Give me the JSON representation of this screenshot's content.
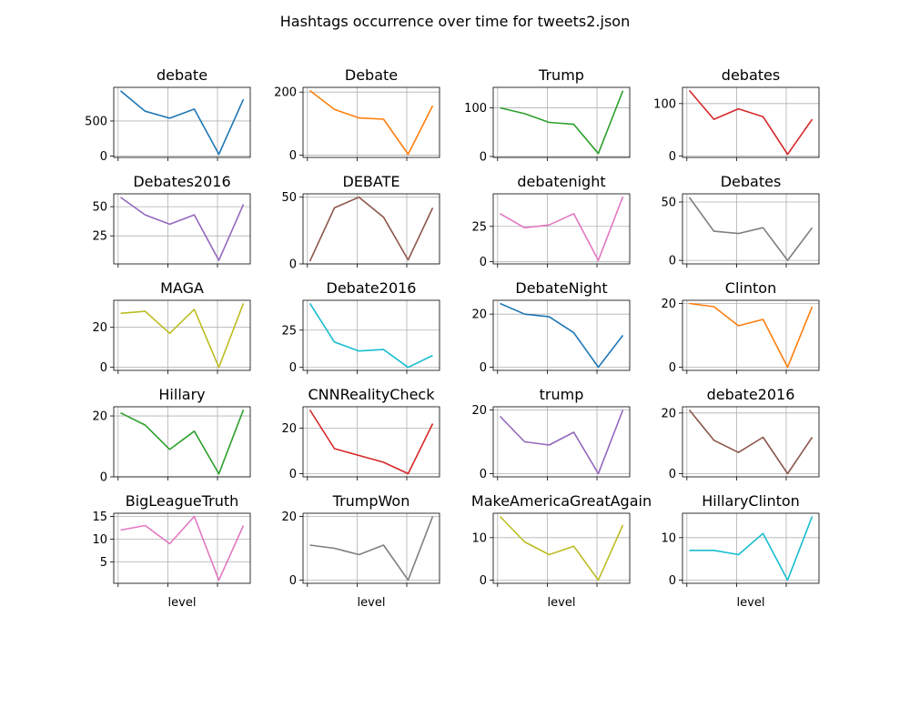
{
  "figure": {
    "title": "Hashtags occurrence over time for tweets2.json"
  },
  "chart_data": {
    "type": "line",
    "title": "Hashtags occurrence over time for tweets2.json",
    "grid": true,
    "xlabel": "level",
    "panels": [
      {
        "name": "debate",
        "color": "#1f77b4",
        "values": [
          930,
          640,
          540,
          670,
          25,
          810
        ],
        "yticks": [
          0,
          500
        ],
        "ylim": [
          -20,
          980
        ]
      },
      {
        "name": "Debate",
        "color": "#ff7f0e",
        "values": [
          205,
          145,
          118,
          114,
          3,
          157
        ],
        "yticks": [
          0,
          200
        ],
        "ylim": [
          -7,
          215
        ]
      },
      {
        "name": "Trump",
        "color": "#2ca02c",
        "values": [
          100,
          88,
          70,
          66,
          6,
          135
        ],
        "yticks": [
          0,
          100
        ],
        "ylim": [
          -2,
          142
        ]
      },
      {
        "name": "debates",
        "color": "#d62728",
        "values": [
          125,
          70,
          90,
          75,
          3,
          70
        ],
        "yticks": [
          0,
          100
        ],
        "ylim": [
          -3,
          131
        ]
      },
      {
        "name": "Debates2016",
        "color": "#9467bd",
        "values": [
          58,
          43,
          35,
          43,
          4,
          52
        ],
        "yticks": [
          25,
          50
        ],
        "ylim": [
          1,
          61
        ]
      },
      {
        "name": "DEBATE",
        "color": "#8c564b",
        "values": [
          2,
          42,
          50,
          35,
          3,
          42
        ],
        "yticks": [
          0,
          50
        ],
        "ylim": [
          0,
          52.5
        ]
      },
      {
        "name": "debatenight",
        "color": "#e377c2",
        "values": [
          34,
          24,
          26,
          34,
          1,
          46
        ],
        "yticks": [
          0,
          25
        ],
        "ylim": [
          -1.5,
          48
        ]
      },
      {
        "name": "Debates",
        "color": "#7f7f7f",
        "values": [
          54,
          25,
          23,
          28,
          0,
          28
        ],
        "yticks": [
          0,
          50
        ],
        "ylim": [
          -3,
          57
        ]
      },
      {
        "name": "MAGA",
        "color": "#bcbd22",
        "values": [
          27,
          28,
          17,
          29,
          0,
          32
        ],
        "yticks": [
          0,
          20
        ],
        "ylim": [
          -1.5,
          33.5
        ]
      },
      {
        "name": "Debate2016",
        "color": "#17becf",
        "values": [
          43,
          17,
          11,
          12,
          0,
          8
        ],
        "yticks": [
          0,
          25
        ],
        "ylim": [
          -2,
          45
        ]
      },
      {
        "name": "DebateNight",
        "color": "#1f77b4",
        "values": [
          24,
          20,
          19,
          13,
          0,
          12
        ],
        "yticks": [
          0,
          20
        ],
        "ylim": [
          -1.2,
          25.2
        ]
      },
      {
        "name": "Clinton",
        "color": "#ff7f0e",
        "values": [
          20,
          19,
          13,
          15,
          0,
          19
        ],
        "yticks": [
          0,
          20
        ],
        "ylim": [
          -1,
          21
        ]
      },
      {
        "name": "Hillary",
        "color": "#2ca02c",
        "values": [
          21,
          17,
          9,
          15,
          1,
          22
        ],
        "yticks": [
          0,
          20
        ],
        "ylim": [
          0,
          23
        ]
      },
      {
        "name": "CNNRealityCheck",
        "color": "#d62728",
        "values": [
          28,
          11,
          8,
          5,
          0,
          22
        ],
        "yticks": [
          0,
          20
        ],
        "ylim": [
          -1.4,
          29.4
        ]
      },
      {
        "name": "trump",
        "color": "#9467bd",
        "values": [
          18,
          10,
          9,
          13,
          0,
          20
        ],
        "yticks": [
          0,
          20
        ],
        "ylim": [
          -1,
          21
        ]
      },
      {
        "name": "debate2016",
        "color": "#8c564b",
        "values": [
          21,
          11,
          7,
          12,
          0,
          12
        ],
        "yticks": [
          0,
          20
        ],
        "ylim": [
          -1.05,
          22.05
        ]
      },
      {
        "name": "BigLeagueTruth",
        "color": "#e377c2",
        "values": [
          12,
          13,
          9,
          15,
          1,
          13
        ],
        "yticks": [
          5,
          10,
          15
        ],
        "ylim": [
          0.3,
          15.7
        ]
      },
      {
        "name": "TrumpWon",
        "color": "#7f7f7f",
        "values": [
          11,
          10,
          8,
          11,
          0,
          20
        ],
        "yticks": [
          0,
          20
        ],
        "ylim": [
          -1,
          21
        ]
      },
      {
        "name": "MakeAmericaGreatAgain",
        "color": "#bcbd22",
        "values": [
          15,
          9,
          6,
          8,
          0,
          13
        ],
        "yticks": [
          0,
          10
        ],
        "ylim": [
          -0.75,
          15.75
        ]
      },
      {
        "name": "HillaryClinton",
        "color": "#17becf",
        "values": [
          7,
          7,
          6,
          11,
          0,
          15
        ],
        "yticks": [
          0,
          10
        ],
        "ylim": [
          -0.75,
          15.75
        ]
      }
    ]
  }
}
